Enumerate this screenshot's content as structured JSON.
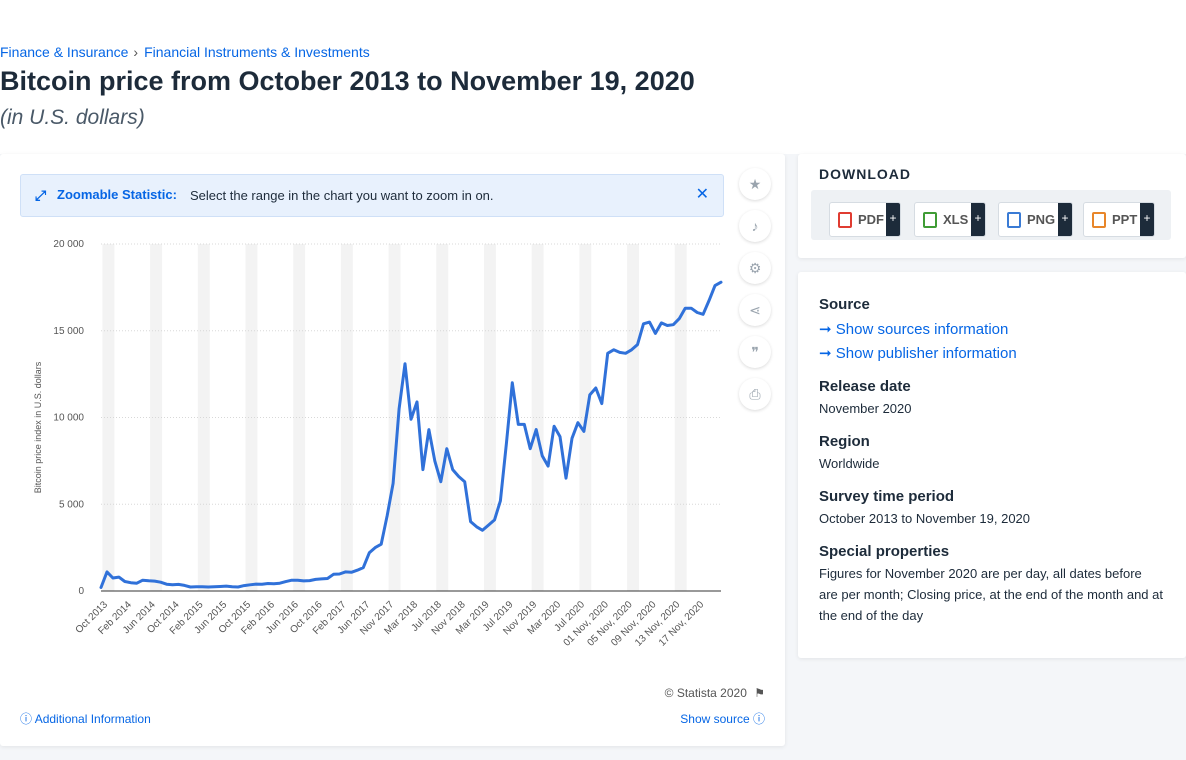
{
  "breadcrumb": {
    "item1": "Finance & Insurance",
    "separator": "›",
    "item2": "Financial Instruments & Investments"
  },
  "title": "Bitcoin price from October 2013 to November 19, 2020",
  "subtitle": "(in U.S. dollars)",
  "zoom_banner": {
    "title": "Zoomable Statistic:",
    "text": "Select the range in the chart you want to zoom in on."
  },
  "footer": {
    "copyright": "© Statista 2020",
    "additional_info": "Additional Information",
    "show_source": "Show source"
  },
  "download": {
    "title": "DOWNLOAD",
    "buttons": [
      {
        "label": "PDF",
        "color": "#e03c31"
      },
      {
        "label": "XLS",
        "color": "#3f9c35"
      },
      {
        "label": "PNG",
        "color": "#3a7bd5"
      },
      {
        "label": "PPT",
        "color": "#e8862a"
      }
    ],
    "plus": "+"
  },
  "info": {
    "source_label": "Source",
    "show_sources": "Show sources information",
    "show_publisher": "Show publisher information",
    "release_label": "Release date",
    "release_value": "November 2020",
    "region_label": "Region",
    "region_value": "Worldwide",
    "survey_label": "Survey time period",
    "survey_value": "October 2013 to November 19, 2020",
    "special_label": "Special properties",
    "special_value": "Figures for November 2020 are per day, all dates before are per month; Closing price, at the end of the month and at the end of the day"
  },
  "icons": {
    "zoom": "expand-arrows-icon",
    "close": "close-icon",
    "tools": [
      "star-icon",
      "bell-icon",
      "gear-icon",
      "share-icon",
      "quote-icon",
      "print-icon"
    ],
    "info": "info-circle-icon",
    "flag": "flag-icon",
    "arrow": "arrow-right-icon"
  },
  "colors": {
    "series": "#3071d9",
    "accent": "#0666e5"
  },
  "chart_data": {
    "type": "line",
    "title": "Bitcoin price from October 2013 to November 19, 2020",
    "ylabel": "Bitcoin price index in U.S. dollars",
    "xlabel": "",
    "ylim": [
      0,
      20000
    ],
    "yticks": [
      0,
      5000,
      10000,
      15000,
      20000
    ],
    "ytick_labels": [
      "0",
      "5 000",
      "10 000",
      "15 000",
      "20 000"
    ],
    "xtick_labels": [
      "Oct 2013",
      "Feb 2014",
      "Jun 2014",
      "Oct 2014",
      "Feb 2015",
      "Jun 2015",
      "Oct 2015",
      "Feb 2016",
      "Jun 2016",
      "Oct 2016",
      "Feb 2017",
      "Jun 2017",
      "Nov 2017",
      "Mar 2018",
      "Jul 2018",
      "Nov 2018",
      "Mar 2019",
      "Jul 2019",
      "Nov 2019",
      "Mar 2020",
      "Jul 2020",
      "01 Nov, 2020",
      "05 Nov, 2020",
      "09 Nov, 2020",
      "13 Nov, 2020",
      "17 Nov, 2020"
    ],
    "grid": true,
    "legend": "none",
    "series": [
      {
        "values": [
          200,
          1100,
          750,
          800,
          550,
          480,
          450,
          620,
          590,
          570,
          510,
          390,
          360,
          380,
          320,
          230,
          240,
          250,
          230,
          240,
          260,
          280,
          240,
          230,
          310,
          360,
          400,
          390,
          430,
          420,
          450,
          540,
          620,
          620,
          580,
          600,
          670,
          700,
          720,
          960,
          980,
          1100,
          1080,
          1200,
          1350,
          2200,
          2500,
          2700,
          4350,
          6200,
          10500,
          13100,
          9900,
          10900,
          7000,
          9300,
          7500,
          6300,
          8200,
          7000,
          6600,
          6300,
          4000,
          3700,
          3500,
          3800,
          4100,
          5200,
          8500,
          12000,
          9600,
          9600,
          8200,
          9300,
          7800,
          7200,
          9500,
          8900,
          6500,
          8800,
          9700,
          9200,
          11300,
          11700,
          10800,
          13700,
          13900,
          13750,
          13700,
          13900,
          14200,
          15400,
          15500,
          14850,
          15450,
          15300,
          15350,
          15700,
          16300,
          16300,
          16050,
          15950,
          16750,
          17600,
          17800
        ]
      }
    ]
  }
}
